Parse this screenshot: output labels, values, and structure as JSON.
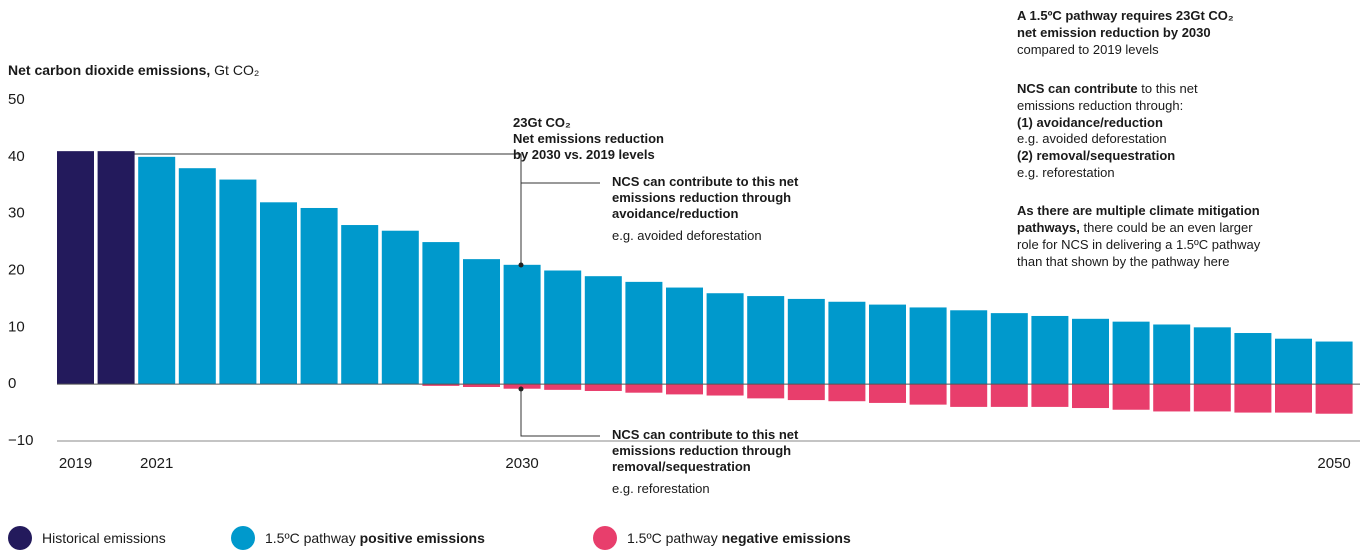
{
  "chart_data": {
    "type": "bar",
    "title": [
      {
        "text": "Net carbon dioxide emissions,",
        "bold": true
      },
      {
        "text": " Gt CO₂"
      }
    ],
    "categories": [
      "2019",
      null,
      "2021",
      null,
      null,
      null,
      null,
      null,
      null,
      null,
      null,
      "2030",
      null,
      null,
      null,
      null,
      null,
      null,
      null,
      null,
      null,
      null,
      null,
      null,
      null,
      null,
      null,
      null,
      null,
      null,
      null,
      "2050"
    ],
    "series": [
      {
        "name": [
          {
            "text": "Historical emissions"
          }
        ],
        "color": "#231a5c",
        "values": [
          41,
          41,
          null,
          null,
          null,
          null,
          null,
          null,
          null,
          null,
          null,
          null,
          null,
          null,
          null,
          null,
          null,
          null,
          null,
          null,
          null,
          null,
          null,
          null,
          null,
          null,
          null,
          null,
          null,
          null,
          null,
          null
        ]
      },
      {
        "name": [
          {
            "text": "1.5ºC pathway "
          },
          {
            "text": "positive emissions",
            "bold": true
          }
        ],
        "color": "#0099cc",
        "values": [
          null,
          null,
          40,
          38,
          36,
          32,
          31,
          28,
          27,
          25,
          22,
          21,
          20,
          19,
          18,
          17,
          16,
          15.5,
          15,
          14.5,
          14,
          13.5,
          13,
          12.5,
          12,
          11.5,
          11,
          10.5,
          10,
          9,
          8,
          7.5
        ]
      },
      {
        "name": [
          {
            "text": "1.5ºC pathway "
          },
          {
            "text": "negative emissions",
            "bold": true
          }
        ],
        "color": "#e83e6c",
        "values": [
          null,
          null,
          null,
          null,
          null,
          null,
          null,
          null,
          null,
          -0.3,
          -0.5,
          -0.8,
          -1,
          -1.2,
          -1.5,
          -1.8,
          -2,
          -2.5,
          -2.8,
          -3,
          -3.3,
          -3.6,
          -4,
          -4,
          -4,
          -4.2,
          -4.5,
          -4.8,
          -4.8,
          -5,
          -5,
          -5.2
        ]
      }
    ],
    "ylim": [
      -10,
      50
    ],
    "yticks": [
      {
        "value": -10,
        "label": "−10"
      },
      0,
      10,
      20,
      30,
      40,
      50
    ],
    "grid": false,
    "annotations": [
      {
        "lines": [
          [
            {
              "text": "23Gt CO₂",
              "bold": true
            }
          ],
          [
            {
              "text": "Net emissions reduction",
              "bold": true
            }
          ],
          [
            {
              "text": "by 2030 vs. 2019 levels",
              "bold": true
            }
          ]
        ]
      },
      {
        "lines": [
          [
            {
              "text": "NCS can contribute to this net",
              "bold": true
            }
          ],
          [
            {
              "text": "emissions reduction through",
              "bold": true
            }
          ],
          [
            {
              "text": "avoidance/reduction",
              "bold": true
            }
          ],
          [
            {
              "text": "e.g. avoided deforestation"
            }
          ]
        ]
      },
      {
        "lines": [
          [
            {
              "text": "NCS can contribute to this net",
              "bold": true
            }
          ],
          [
            {
              "text": "emissions reduction through",
              "bold": true
            }
          ],
          [
            {
              "text": "removal/sequestration",
              "bold": true
            }
          ],
          [
            {
              "text": "e.g. reforestation"
            }
          ]
        ]
      },
      {
        "lines": [
          [
            {
              "text": "A 1.5ºC pathway requires 23Gt CO₂",
              "bold": true
            }
          ],
          [
            {
              "text": "net emission reduction by 2030",
              "bold": true
            }
          ],
          [
            {
              "text": "compared to 2019 levels"
            }
          ],
          [
            {
              "text": "NCS can contribute",
              "bold": true
            },
            {
              "text": " to this net"
            }
          ],
          [
            {
              "text": "emissions reduction through:"
            }
          ],
          [
            {
              "text": "(1) avoidance/reduction",
              "bold": true
            }
          ],
          [
            {
              "text": "e.g. avoided deforestation"
            }
          ],
          [
            {
              "text": "(2) removal/sequestration",
              "bold": true
            }
          ],
          [
            {
              "text": "e.g. reforestation"
            }
          ],
          [
            {
              "text": "As there are multiple climate mitigation",
              "bold": true
            }
          ],
          [
            {
              "text": "pathways,",
              "bold": true
            },
            {
              "text": " there could be an even larger"
            }
          ],
          [
            {
              "text": "role for NCS in delivering a 1.5ºC pathway"
            }
          ],
          [
            {
              "text": "than that shown by the pathway here"
            }
          ]
        ]
      }
    ]
  }
}
